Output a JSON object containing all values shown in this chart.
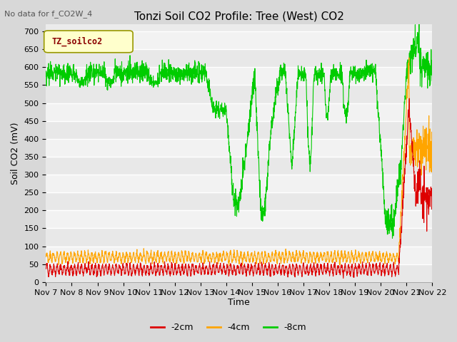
{
  "title": "Tonzi Soil CO2 Profile: Tree (West) CO2",
  "subtitle": "No data for f_CO2W_4",
  "ylabel": "Soil CO2 (mV)",
  "xlabel": "Time",
  "legend_label": "TZ_soilco2",
  "ylim": [
    0,
    720
  ],
  "yticks": [
    0,
    50,
    100,
    150,
    200,
    250,
    300,
    350,
    400,
    450,
    500,
    550,
    600,
    650,
    700
  ],
  "series_labels": [
    "-2cm",
    "-4cm",
    "-8cm"
  ],
  "series_colors": [
    "#dd0000",
    "#ffa500",
    "#00cc00"
  ],
  "line_width": 0.8,
  "x_start": 7,
  "x_end": 22,
  "xtick_labels": [
    "Nov 7",
    "Nov 8",
    "Nov 9",
    "Nov 10",
    "Nov 11",
    "Nov 12",
    "Nov 13",
    "Nov 14",
    "Nov 15",
    "Nov 16",
    "Nov 17",
    "Nov 18",
    "Nov 19",
    "Nov 20",
    "Nov 21",
    "Nov 22"
  ],
  "xtick_positions": [
    7,
    8,
    9,
    10,
    11,
    12,
    13,
    14,
    15,
    16,
    17,
    18,
    19,
    20,
    21,
    22
  ]
}
